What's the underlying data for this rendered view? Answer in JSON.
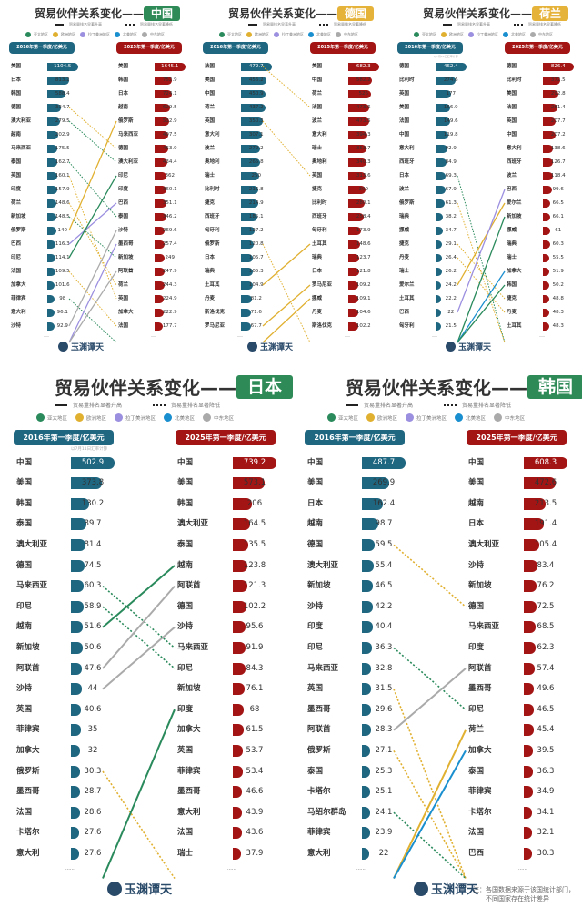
{
  "common": {
    "title_prefix": "贸易伙伴关系变化——",
    "legend_up": "贸易量排名显著升高",
    "legend_down": "贸易量排名显著降低",
    "regions": [
      {
        "label": "亚太地区",
        "color": "#2a8a5c"
      },
      {
        "label": "欧洲地区",
        "color": "#e0b030"
      },
      {
        "label": "拉丁美洲地区",
        "color": "#9b8fe0"
      },
      {
        "label": "北美地区",
        "color": "#1a8fcf"
      },
      {
        "label": "中东地区",
        "color": "#aaaaaa"
      }
    ],
    "left_header": "2016年第一季度/亿美元",
    "right_header": "2025年第一季度/亿美元",
    "more": "......",
    "logo_text": "玉渊谭天",
    "left_header_color": "#1f6680",
    "right_header_color": "#a31515",
    "footnote_1": "注：各国数据来源于该国统计部门，",
    "footnote_2": "不同国家存在统计差异"
  },
  "panels": [
    {
      "country": "中国",
      "badge_color": "#2e8b57",
      "note": "",
      "left": [
        [
          "美国",
          1104.5
        ],
        [
          "日本",
          813.2
        ],
        [
          "韩国",
          588.4
        ],
        [
          "德国",
          334.7
        ],
        [
          "澳大利亚",
          279.5
        ],
        [
          "越南",
          202.9
        ],
        [
          "马来西亚",
          175.5
        ],
        [
          "泰国",
          162.7
        ],
        [
          "英国",
          160.1
        ],
        [
          "印度",
          157.9
        ],
        [
          "荷兰",
          148.6
        ],
        [
          "新加坡",
          148.5
        ],
        [
          "俄罗斯",
          140
        ],
        [
          "巴西",
          116.3
        ],
        [
          "印尼",
          114.1
        ],
        [
          "法国",
          109.5
        ],
        [
          "加拿大",
          101.6
        ],
        [
          "菲律宾",
          98
        ],
        [
          "意大利",
          96.1
        ],
        [
          "沙特",
          92.9
        ]
      ],
      "right": [
        [
          "美国",
          1645.1
        ],
        [
          "韩国",
          752.9
        ],
        [
          "日本",
          724.1
        ],
        [
          "越南",
          629.5
        ],
        [
          "俄罗斯",
          532.9
        ],
        [
          "马来西亚",
          497.5
        ],
        [
          "德国",
          463.9
        ],
        [
          "澳大利亚",
          434.4
        ],
        [
          "印尼",
          362
        ],
        [
          "印度",
          360.1
        ],
        [
          "巴西",
          351.1
        ],
        [
          "泰国",
          346.2
        ],
        [
          "沙特",
          269.6
        ],
        [
          "墨西哥",
          257.4
        ],
        [
          "新加坡",
          249
        ],
        [
          "阿联酋",
          247.9
        ],
        [
          "荷兰",
          244.3
        ],
        [
          "英国",
          224.9
        ],
        [
          "加拿大",
          222.9
        ],
        [
          "法国",
          177.7
        ]
      ],
      "lines": [
        {
          "from": 3,
          "to": 6,
          "region": "欧洲地区",
          "style": "down"
        },
        {
          "from": 4,
          "to": 7,
          "region": "亚太地区",
          "style": "down"
        },
        {
          "from": 7,
          "to": 11,
          "region": "亚太地区",
          "style": "down"
        },
        {
          "from": 8,
          "to": 17,
          "region": "欧洲地区",
          "style": "down"
        },
        {
          "from": 10,
          "to": 16,
          "region": "欧洲地区",
          "style": "down"
        },
        {
          "from": 11,
          "to": 14,
          "region": "亚太地区",
          "style": "down"
        },
        {
          "from": 12,
          "to": 4,
          "region": "欧洲地区",
          "style": "up"
        },
        {
          "from": 13,
          "to": 10,
          "region": "拉丁美洲地区",
          "style": "up"
        },
        {
          "from": 14,
          "to": 8,
          "region": "亚太地区",
          "style": "up"
        },
        {
          "from": 15,
          "to": 19,
          "region": "欧洲地区",
          "style": "down"
        },
        {
          "from": 17,
          "to": null,
          "region": "亚太地区",
          "style": "down"
        },
        {
          "from": 19,
          "to": 12,
          "region": "中东地区",
          "style": "up"
        },
        {
          "from": null,
          "to": 13,
          "region": "拉丁美洲地区",
          "style": "up"
        },
        {
          "from": null,
          "to": 15,
          "region": "中东地区",
          "style": "up"
        }
      ]
    },
    {
      "country": "德国",
      "badge_color": "#e6b33a",
      "note": "",
      "left": [
        [
          "法国",
          472.7
        ],
        [
          "美国",
          456.2
        ],
        [
          "中国",
          450.9
        ],
        [
          "荷兰",
          437.2
        ],
        [
          "英国",
          350.3
        ],
        [
          "意大利",
          307.1
        ],
        [
          "波兰",
          272.2
        ],
        [
          "奥地利",
          265.8
        ],
        [
          "瑞士",
          250
        ],
        [
          "比利时",
          216.8
        ],
        [
          "捷克",
          214.9
        ],
        [
          "西班牙",
          185.1
        ],
        [
          "匈牙利",
          127.2
        ],
        [
          "俄罗斯",
          120.8
        ],
        [
          "日本",
          105.7
        ],
        [
          "瑞典",
          105.3
        ],
        [
          "土耳其",
          104.9
        ],
        [
          "丹麦",
          81.2
        ],
        [
          "斯洛伐克",
          71.6
        ],
        [
          "罗马尼亚",
          67.7
        ]
      ],
      "right": [
        [
          "美国",
          682.3
        ],
        [
          "中国",
          582.2
        ],
        [
          "荷兰",
          526
        ],
        [
          "法国",
          473.6
        ],
        [
          "波兰",
          473.5
        ],
        [
          "意大利",
          394.3
        ],
        [
          "瑞士",
          353.7
        ],
        [
          "奥地利",
          340.3
        ],
        [
          "英国",
          313.6
        ],
        [
          "捷克",
          300
        ],
        [
          "比利时",
          280.1
        ],
        [
          "西班牙",
          258.4
        ],
        [
          "匈牙利",
          173.9
        ],
        [
          "土耳其",
          148.6
        ],
        [
          "瑞典",
          123.7
        ],
        [
          "日本",
          121.8
        ],
        [
          "罗马尼亚",
          109.2
        ],
        [
          "挪威",
          109.1
        ],
        [
          "丹麦",
          104.6
        ],
        [
          "斯洛伐克",
          102.2
        ]
      ],
      "lines": [
        {
          "from": 0,
          "to": 3,
          "region": "欧洲地区",
          "style": "down"
        },
        {
          "from": 4,
          "to": 8,
          "region": "欧洲地区",
          "style": "down"
        },
        {
          "from": 13,
          "to": null,
          "region": "欧洲地区",
          "style": "down"
        },
        {
          "from": 16,
          "to": 13,
          "region": "欧洲地区",
          "style": "up"
        },
        {
          "from": 19,
          "to": 16,
          "region": "欧洲地区",
          "style": "up"
        },
        {
          "from": null,
          "to": 17,
          "region": "欧洲地区",
          "style": "up"
        }
      ]
    },
    {
      "country": "荷兰",
      "badge_color": "#e6b33a",
      "note": "以7月11日汇率计算",
      "left": [
        [
          "德国",
          462.4
        ],
        [
          "比利时",
          274.6
        ],
        [
          "英国",
          177
        ],
        [
          "美国",
          156.9
        ],
        [
          "法国",
          149.6
        ],
        [
          "中国",
          119.8
        ],
        [
          "意大利",
          92.9
        ],
        [
          "西班牙",
          84.9
        ],
        [
          "日本",
          69.3
        ],
        [
          "波兰",
          67.9
        ],
        [
          "俄罗斯",
          61.3
        ],
        [
          "瑞典",
          38.2
        ],
        [
          "挪威",
          34.7
        ],
        [
          "捷克",
          29.1
        ],
        [
          "丹麦",
          26.4
        ],
        [
          "瑞士",
          26.2
        ],
        [
          "爱尔兰",
          24.2
        ],
        [
          "土耳其",
          22.2
        ],
        [
          "巴西",
          22
        ],
        [
          "匈牙利",
          21.5
        ]
      ],
      "right": [
        [
          "德国",
          826.4
        ],
        [
          "比利时",
          372.5
        ],
        [
          "美国",
          292.8
        ],
        [
          "法国",
          281.4
        ],
        [
          "英国",
          207.7
        ],
        [
          "中国",
          207.2
        ],
        [
          "意大利",
          138.6
        ],
        [
          "西班牙",
          126.7
        ],
        [
          "波兰",
          118.4
        ],
        [
          "巴西",
          99.6
        ],
        [
          "爱尔兰",
          66.5
        ],
        [
          "新加坡",
          66.1
        ],
        [
          "挪威",
          61
        ],
        [
          "瑞典",
          60.3
        ],
        [
          "瑞士",
          55.5
        ],
        [
          "加拿大",
          51.9
        ],
        [
          "韩国",
          50.2
        ],
        [
          "捷克",
          48.8
        ],
        [
          "丹麦",
          48.3
        ],
        [
          "土耳其",
          48.3
        ]
      ],
      "lines": [
        {
          "from": 8,
          "to": null,
          "region": "亚太地区",
          "style": "down"
        },
        {
          "from": 10,
          "to": null,
          "region": "欧洲地区",
          "style": "down"
        },
        {
          "from": 13,
          "to": 17,
          "region": "欧洲地区",
          "style": "down"
        },
        {
          "from": 14,
          "to": 18,
          "region": "欧洲地区",
          "style": "down"
        },
        {
          "from": 16,
          "to": 10,
          "region": "欧洲地区",
          "style": "up"
        },
        {
          "from": 18,
          "to": 9,
          "region": "拉丁美洲地区",
          "style": "up"
        },
        {
          "from": null,
          "to": 11,
          "region": "亚太地区",
          "style": "up"
        },
        {
          "from": null,
          "to": 15,
          "region": "北美地区",
          "style": "up"
        },
        {
          "from": null,
          "to": 16,
          "region": "亚太地区",
          "style": "up"
        }
      ]
    },
    {
      "country": "日本",
      "badge_color": "#2e8b57",
      "note": "以7月11日汇率计算",
      "left": [
        [
          "中国",
          502.9
        ],
        [
          "美国",
          373.8
        ],
        [
          "韩国",
          130.2
        ],
        [
          "泰国",
          89.7
        ],
        [
          "澳大利亚",
          81.4
        ],
        [
          "德国",
          74.5
        ],
        [
          "马来西亚",
          60.3
        ],
        [
          "印尼",
          58.9
        ],
        [
          "越南",
          51.6
        ],
        [
          "新加坡",
          50.6
        ],
        [
          "阿联酋",
          47.6
        ],
        [
          "沙特",
          44
        ],
        [
          "英国",
          40.6
        ],
        [
          "菲律宾",
          35
        ],
        [
          "加拿大",
          32
        ],
        [
          "俄罗斯",
          30.3
        ],
        [
          "墨西哥",
          28.7
        ],
        [
          "法国",
          28.6
        ],
        [
          "卡塔尔",
          27.6
        ],
        [
          "意大利",
          27.6
        ]
      ],
      "right": [
        [
          "中国",
          739.2
        ],
        [
          "美国",
          573.1
        ],
        [
          "韩国",
          206
        ],
        [
          "澳大利亚",
          164.5
        ],
        [
          "泰国",
          135.5
        ],
        [
          "越南",
          123.8
        ],
        [
          "阿联酋",
          121.3
        ],
        [
          "德国",
          102.2
        ],
        [
          "沙特",
          95.6
        ],
        [
          "马来西亚",
          91.9
        ],
        [
          "印尼",
          84.3
        ],
        [
          "新加坡",
          76.1
        ],
        [
          "印度",
          68
        ],
        [
          "加拿大",
          61.5
        ],
        [
          "英国",
          53.7
        ],
        [
          "菲律宾",
          53.4
        ],
        [
          "墨西哥",
          46.6
        ],
        [
          "意大利",
          43.9
        ],
        [
          "法国",
          43.6
        ],
        [
          "瑞士",
          37.9
        ]
      ],
      "lines": [
        {
          "from": 6,
          "to": 9,
          "region": "亚太地区",
          "style": "down"
        },
        {
          "from": 7,
          "to": 10,
          "region": "亚太地区",
          "style": "down"
        },
        {
          "from": 8,
          "to": 5,
          "region": "亚太地区",
          "style": "up"
        },
        {
          "from": 10,
          "to": 6,
          "region": "中东地区",
          "style": "up"
        },
        {
          "from": 11,
          "to": 8,
          "region": "中东地区",
          "style": "up"
        },
        {
          "from": 15,
          "to": null,
          "region": "欧洲地区",
          "style": "down"
        },
        {
          "from": null,
          "to": 12,
          "region": "亚太地区",
          "style": "up"
        }
      ]
    },
    {
      "country": "韩国",
      "badge_color": "#2e8b57",
      "note": "",
      "left": [
        [
          "中国",
          487.7
        ],
        [
          "美国",
          269.9
        ],
        [
          "日本",
          162.4
        ],
        [
          "越南",
          98.7
        ],
        [
          "德国",
          59.5
        ],
        [
          "澳大利亚",
          55.4
        ],
        [
          "新加坡",
          46.5
        ],
        [
          "沙特",
          42.2
        ],
        [
          "印度",
          40.4
        ],
        [
          "印尼",
          36.3
        ],
        [
          "马来西亚",
          32.8
        ],
        [
          "英国",
          31.5
        ],
        [
          "墨西哥",
          29.6
        ],
        [
          "阿联酋",
          28.3
        ],
        [
          "俄罗斯",
          27.1
        ],
        [
          "泰国",
          25.3
        ],
        [
          "卡塔尔",
          25.1
        ],
        [
          "马绍尔群岛",
          24.1
        ],
        [
          "菲律宾",
          23.9
        ],
        [
          "意大利",
          22
        ]
      ],
      "right": [
        [
          "中国",
          608.3
        ],
        [
          "美国",
          472.6
        ],
        [
          "越南",
          213.5
        ],
        [
          "日本",
          191.4
        ],
        [
          "澳大利亚",
          105.4
        ],
        [
          "沙特",
          83.4
        ],
        [
          "新加坡",
          76.2
        ],
        [
          "德国",
          72.5
        ],
        [
          "马来西亚",
          68.5
        ],
        [
          "印度",
          62.3
        ],
        [
          "阿联酋",
          57.4
        ],
        [
          "墨西哥",
          49.6
        ],
        [
          "印尼",
          46.5
        ],
        [
          "荷兰",
          45.4
        ],
        [
          "加拿大",
          39.5
        ],
        [
          "泰国",
          36.3
        ],
        [
          "菲律宾",
          34.9
        ],
        [
          "卡塔尔",
          34.1
        ],
        [
          "法国",
          32.1
        ],
        [
          "巴西",
          30.3
        ]
      ],
      "lines": [
        {
          "from": 4,
          "to": 7,
          "region": "欧洲地区",
          "style": "down"
        },
        {
          "from": 9,
          "to": 12,
          "region": "亚太地区",
          "style": "down"
        },
        {
          "from": 11,
          "to": null,
          "region": "欧洲地区",
          "style": "down"
        },
        {
          "from": 13,
          "to": 10,
          "region": "中东地区",
          "style": "up"
        },
        {
          "from": 14,
          "to": null,
          "region": "欧洲地区",
          "style": "down"
        },
        {
          "from": 17,
          "to": null,
          "region": "亚太地区",
          "style": "down"
        },
        {
          "from": null,
          "to": 13,
          "region": "欧洲地区",
          "style": "up"
        },
        {
          "from": null,
          "to": 14,
          "region": "北美地区",
          "style": "up"
        }
      ]
    }
  ]
}
